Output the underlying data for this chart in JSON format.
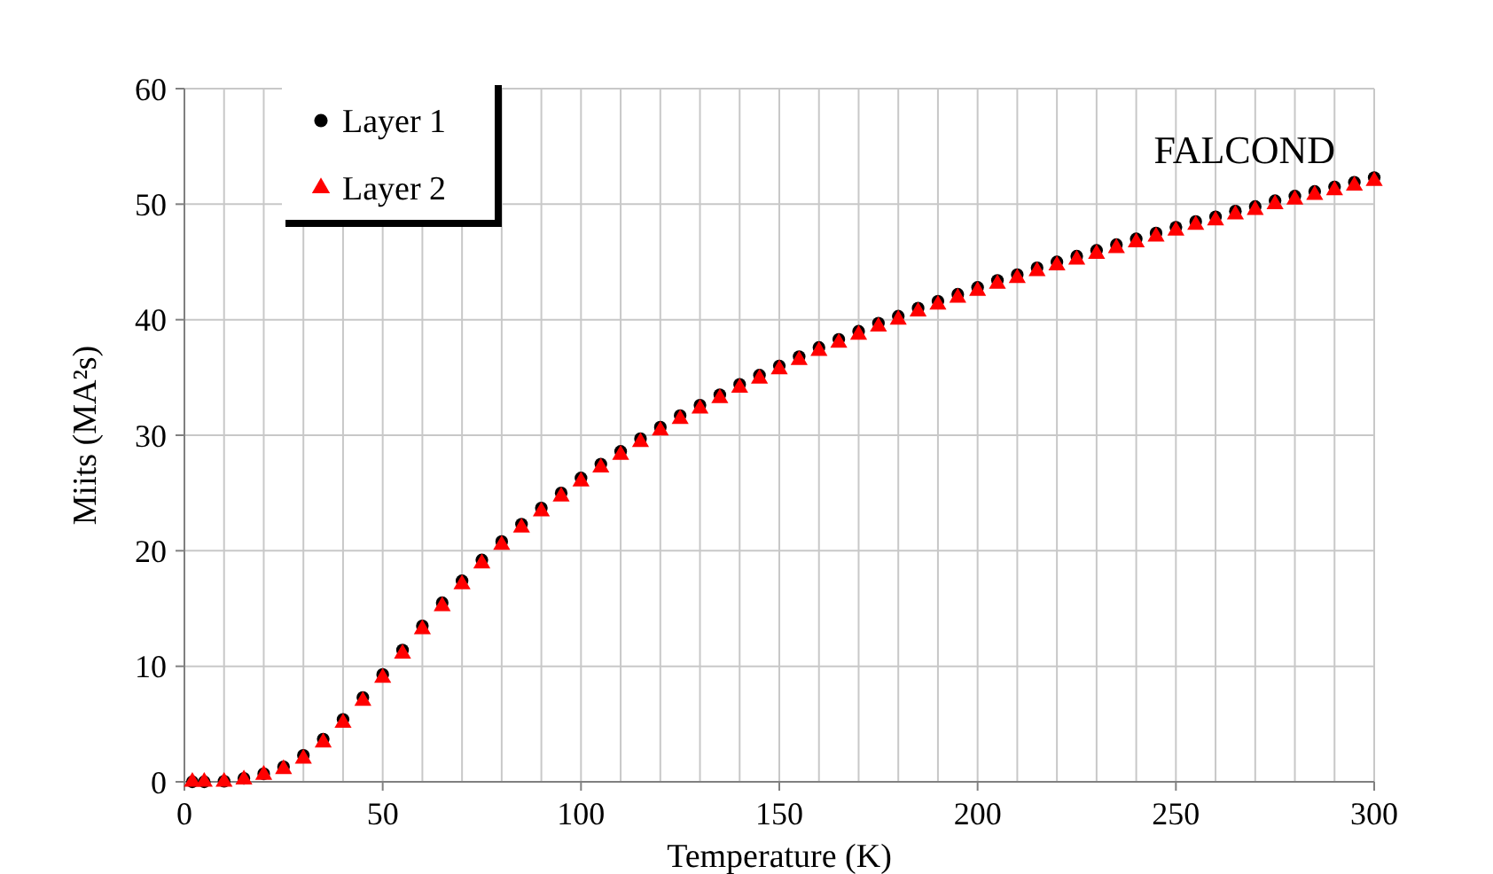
{
  "chart_data": {
    "type": "scatter",
    "xlabel": "Temperature (K)",
    "ylabel": "Miits (MA²s)",
    "annotations": [
      "FALCOND"
    ],
    "x": [
      2,
      5,
      10,
      15,
      20,
      25,
      30,
      35,
      40,
      45,
      50,
      55,
      60,
      65,
      70,
      75,
      80,
      85,
      90,
      95,
      100,
      105,
      110,
      115,
      120,
      125,
      130,
      135,
      140,
      145,
      150,
      155,
      160,
      165,
      170,
      175,
      180,
      185,
      190,
      195,
      200,
      205,
      210,
      215,
      220,
      225,
      230,
      235,
      240,
      245,
      250,
      255,
      260,
      265,
      270,
      275,
      280,
      285,
      290,
      295,
      300
    ],
    "series": [
      {
        "name": "Layer 1",
        "color": "#000000",
        "marker": "circle",
        "values": [
          0,
          0,
          0.05,
          0.3,
          0.7,
          1.3,
          2.3,
          3.7,
          5.4,
          7.3,
          9.3,
          11.4,
          13.5,
          15.5,
          17.4,
          19.2,
          20.8,
          22.3,
          23.7,
          25.0,
          26.3,
          27.5,
          28.6,
          29.7,
          30.7,
          31.7,
          32.6,
          33.5,
          34.4,
          35.2,
          36.0,
          36.8,
          37.6,
          38.3,
          39.0,
          39.7,
          40.3,
          41.0,
          41.6,
          42.2,
          42.8,
          43.4,
          43.9,
          44.5,
          45.0,
          45.5,
          46.0,
          46.5,
          47.0,
          47.5,
          48.0,
          48.5,
          48.9,
          49.4,
          49.8,
          50.3,
          50.7,
          51.1,
          51.5,
          51.9,
          52.3
        ]
      },
      {
        "name": "Layer 2",
        "color": "#ff0000",
        "marker": "triangle",
        "values": [
          0,
          0,
          0,
          0.2,
          0.6,
          1.1,
          2.0,
          3.4,
          5.1,
          7.0,
          9.0,
          11.1,
          13.2,
          15.2,
          17.1,
          18.9,
          20.5,
          22.0,
          23.4,
          24.7,
          26.0,
          27.2,
          28.3,
          29.4,
          30.4,
          31.4,
          32.3,
          33.2,
          34.1,
          34.9,
          35.7,
          36.5,
          37.3,
          38.0,
          38.7,
          39.4,
          40.0,
          40.7,
          41.3,
          41.9,
          42.5,
          43.1,
          43.6,
          44.2,
          44.7,
          45.2,
          45.7,
          46.2,
          46.7,
          47.2,
          47.7,
          48.2,
          48.6,
          49.1,
          49.5,
          50.0,
          50.4,
          50.8,
          51.2,
          51.6,
          52.0
        ]
      }
    ],
    "xlim": [
      0,
      300
    ],
    "xticks": [
      0,
      {
        "value": 10,
        "label": null
      },
      {
        "value": 20,
        "label": null
      },
      {
        "value": 30,
        "label": null
      },
      {
        "value": 40,
        "label": null
      },
      50,
      {
        "value": 60,
        "label": null
      },
      {
        "value": 70,
        "label": null
      },
      {
        "value": 80,
        "label": null
      },
      {
        "value": 90,
        "label": null
      },
      100,
      {
        "value": 110,
        "label": null
      },
      {
        "value": 120,
        "label": null
      },
      {
        "value": 130,
        "label": null
      },
      {
        "value": 140,
        "label": null
      },
      150,
      {
        "value": 160,
        "label": null
      },
      {
        "value": 170,
        "label": null
      },
      {
        "value": 180,
        "label": null
      },
      {
        "value": 190,
        "label": null
      },
      200,
      {
        "value": 210,
        "label": null
      },
      {
        "value": 220,
        "label": null
      },
      {
        "value": 230,
        "label": null
      },
      {
        "value": 240,
        "label": null
      },
      250,
      {
        "value": 260,
        "label": null
      },
      {
        "value": 270,
        "label": null
      },
      {
        "value": 280,
        "label": null
      },
      {
        "value": 290,
        "label": null
      },
      300
    ],
    "ylim": [
      0,
      60
    ],
    "yticks": [
      0,
      10,
      20,
      30,
      40,
      50,
      60
    ],
    "grid": true,
    "legend": "top left"
  }
}
